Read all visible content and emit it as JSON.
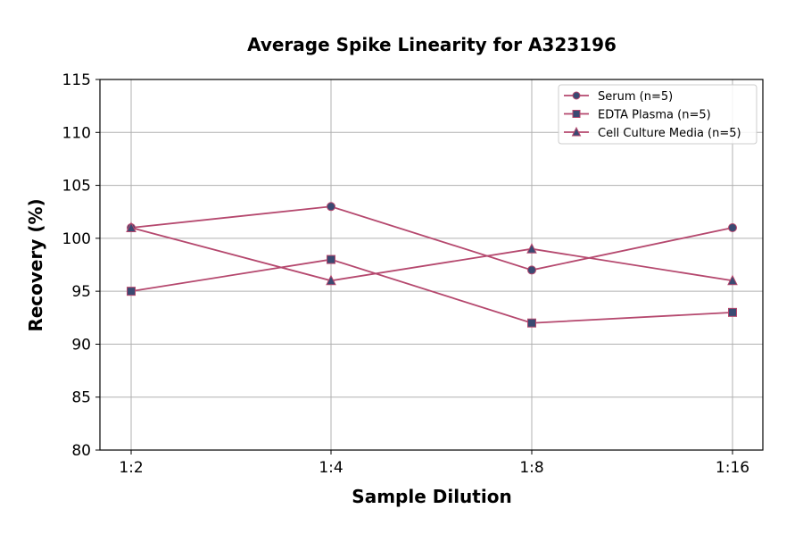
{
  "chart_data": {
    "type": "line",
    "title": "Average Spike Linearity for A323196",
    "xlabel": "Sample Dilution",
    "ylabel": "Recovery (%)",
    "categories": [
      "1:2",
      "1:4",
      "1:8",
      "1:16"
    ],
    "ylim": [
      80,
      115
    ],
    "yticks": [
      80,
      85,
      90,
      95,
      100,
      105,
      110,
      115
    ],
    "grid": true,
    "legend_position": "top-right",
    "line_color": "#b5486e",
    "marker_color": "#3a4a72",
    "series": [
      {
        "name": "Serum (n=5)",
        "marker": "circle",
        "values": [
          101,
          103,
          97,
          101
        ]
      },
      {
        "name": "EDTA Plasma (n=5)",
        "marker": "square",
        "values": [
          95,
          98,
          92,
          93
        ]
      },
      {
        "name": "Cell Culture Media (n=5)",
        "marker": "triangle",
        "values": [
          101,
          96,
          99,
          96
        ]
      }
    ]
  }
}
